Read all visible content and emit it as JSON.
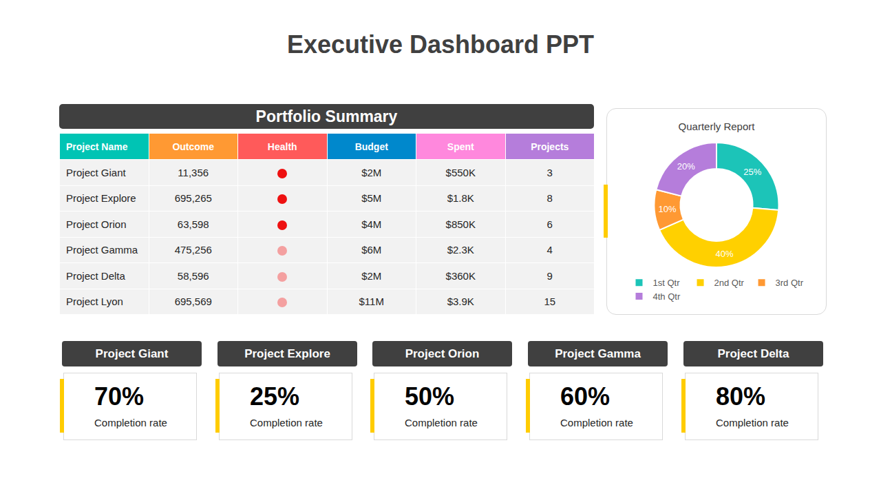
{
  "title": "Executive Dashboard PPT",
  "table": {
    "title": "Portfolio Summary",
    "header": [
      {
        "text": "Project Name",
        "color": "#00c4b4"
      },
      {
        "text": "Outcome",
        "color": "#ff9933"
      },
      {
        "text": "Health",
        "color": "#ff5a5a"
      },
      {
        "text": "Budget",
        "color": "#0088cc"
      },
      {
        "text": "Spent",
        "color": "#ff88dd"
      },
      {
        "text": "Projects",
        "color": "#b57ddb"
      }
    ],
    "rows": [
      [
        "Project Giant",
        "11,356",
        {
          "color": "#ee1111"
        },
        "$2M",
        "$550K",
        3
      ],
      [
        "Project Explore",
        "695,265",
        {
          "color": "#ee1111"
        },
        "$5M",
        "$1.8K",
        8
      ],
      [
        "Project Orion",
        "63,598",
        {
          "color": "#ee1111"
        },
        "$4M",
        "$850K",
        6
      ],
      [
        "Project Gamma",
        "475,256",
        {
          "color": "#f4a0a0"
        },
        "$6M",
        "$2.3K",
        4
      ],
      [
        "Project Delta",
        "58,596",
        {
          "color": "#f4a0a0"
        },
        "$2M",
        "$360K",
        9
      ],
      [
        "Project Lyon",
        "695,569",
        {
          "color": "#f4a0a0"
        },
        "$11M",
        "$3.9K",
        15
      ]
    ]
  },
  "chart_data": {
    "type": "pie",
    "title": "Quarterly Report",
    "categories": [
      "1st Qtr",
      "2nd Qtr",
      "3rd Qtr",
      "4th Qtr"
    ],
    "values": [
      25,
      40,
      10,
      20
    ],
    "value_labels": [
      "25%",
      "40%",
      "10%",
      "20%"
    ],
    "colors": [
      "#1cc4b8",
      "#ffd000",
      "#ff9933",
      "#b57ddb"
    ],
    "data_labels": true,
    "legend": "bottom"
  },
  "cards": [
    {
      "title": "Project Giant",
      "value": "70%",
      "caption": "Completion rate"
    },
    {
      "title": "Project Explore",
      "value": "25%",
      "caption": "Completion rate"
    },
    {
      "title": "Project Orion",
      "value": "50%",
      "caption": "Completion rate"
    },
    {
      "title": "Project Gamma",
      "value": "60%",
      "caption": "Completion rate"
    },
    {
      "title": "Project Delta",
      "value": "80%",
      "caption": "Completion rate"
    }
  ]
}
